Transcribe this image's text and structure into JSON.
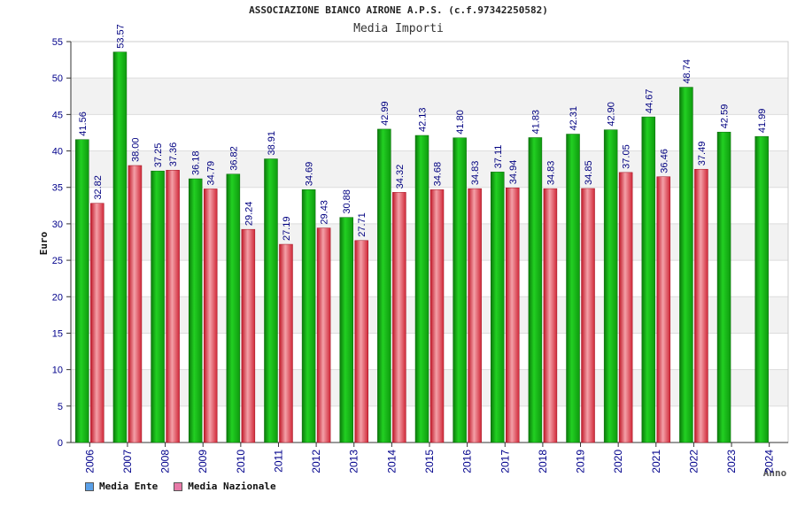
{
  "header": {
    "title": "ASSOCIAZIONE BIANCO AIRONE A.P.S. (c.f.97342250582)",
    "subtitle": "Media Importi"
  },
  "legend": [
    {
      "label": "Media Ente",
      "color": "#5aa0e8"
    },
    {
      "label": "Media Nazionale",
      "color": "#e87aa8"
    }
  ],
  "colors": {
    "ente_bar": "#18b818",
    "nazionale_bar": "#e04050",
    "axis_text": "#00008b",
    "band": "#f2f2f2"
  },
  "chart_data": {
    "type": "bar",
    "ylabel": "Euro",
    "xlabel": "Anno",
    "ylim": [
      0,
      55
    ],
    "yticks": [
      0,
      5,
      10,
      15,
      20,
      25,
      30,
      35,
      40,
      45,
      50,
      55
    ],
    "categories": [
      "2006",
      "2007",
      "2008",
      "2009",
      "2010",
      "2011",
      "2012",
      "2013",
      "2014",
      "2015",
      "2016",
      "2017",
      "2018",
      "2019",
      "2020",
      "2021",
      "2022",
      "2023",
      "2024"
    ],
    "series": [
      {
        "name": "Media Ente",
        "values": [
          41.56,
          53.57,
          37.25,
          36.18,
          36.82,
          38.91,
          34.69,
          30.88,
          42.99,
          42.13,
          41.8,
          37.11,
          41.83,
          42.31,
          42.9,
          44.67,
          48.74,
          42.59,
          41.99
        ],
        "labels": [
          "41.56",
          "53.57",
          "37.25",
          "36.18",
          "36.82",
          "38.91",
          "34.69",
          "30.88",
          "42.99",
          "42.13",
          "41.80",
          "37.11",
          "41.83",
          "42.31",
          "42.90",
          "44.67",
          "48.74",
          "42.59",
          "41.99"
        ]
      },
      {
        "name": "Media Nazionale",
        "values": [
          32.82,
          38.0,
          37.36,
          34.79,
          29.24,
          27.19,
          29.43,
          27.71,
          34.32,
          34.68,
          34.83,
          34.94,
          34.83,
          34.85,
          37.05,
          36.46,
          37.49,
          null,
          null
        ],
        "labels": [
          "32.82",
          "38.00",
          "37.36",
          "34.79",
          "29.24",
          "27.19",
          "29.43",
          "27.71",
          "34.32",
          "34.68",
          "34.83",
          "34.94",
          "34.83",
          "34.85",
          "37.05",
          "36.46",
          "37.49",
          "",
          ""
        ]
      }
    ],
    "grid": true,
    "legend_position": "bottom-left"
  }
}
